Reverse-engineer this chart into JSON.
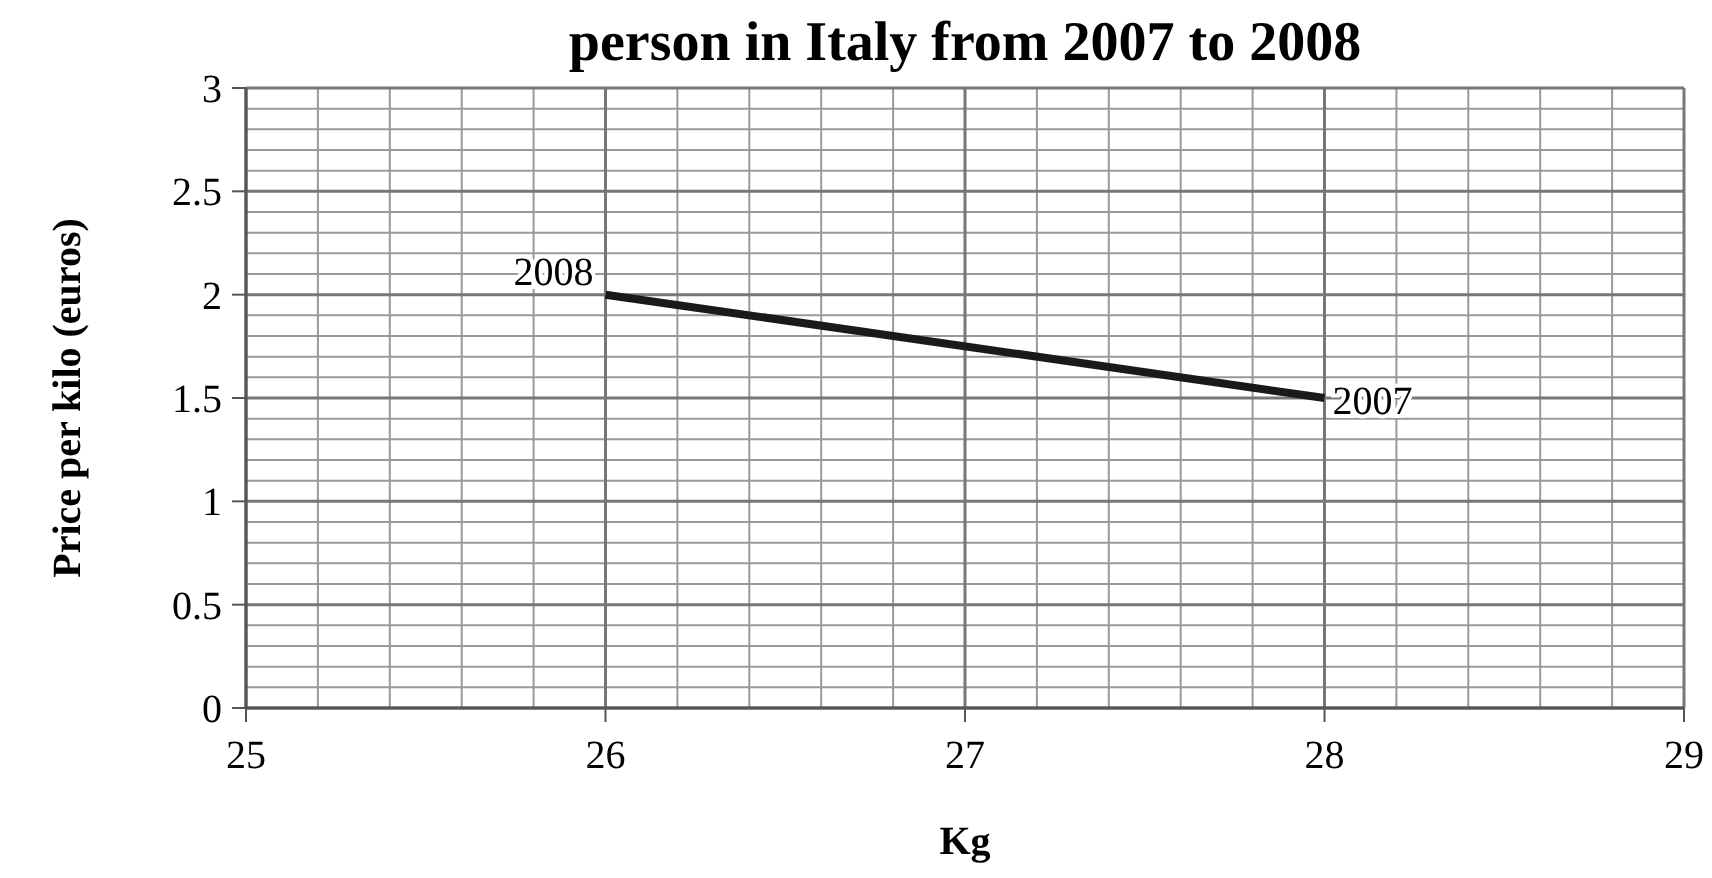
{
  "chart_data": {
    "type": "line",
    "title": "person in Italy from 2007 to 2008",
    "xlabel": "Kg",
    "ylabel": "Price per kilo (euros)",
    "x": [
      26,
      28
    ],
    "series": [
      {
        "color": "#1a1a1a",
        "values": [
          2,
          1.5
        ]
      }
    ],
    "xlim": [
      25,
      29
    ],
    "xticks": [
      25,
      26,
      27,
      28,
      29
    ],
    "ylim": [
      0,
      3
    ],
    "yticks": [
      0,
      0.5,
      1,
      1.5,
      2,
      2.5,
      3
    ],
    "grid": true,
    "marker": "none",
    "line_style": "solid",
    "annotations": [
      {
        "text": "2008",
        "x": 26,
        "y": 2
      },
      {
        "text": "2007",
        "x": 28,
        "y": 1.5
      }
    ]
  }
}
